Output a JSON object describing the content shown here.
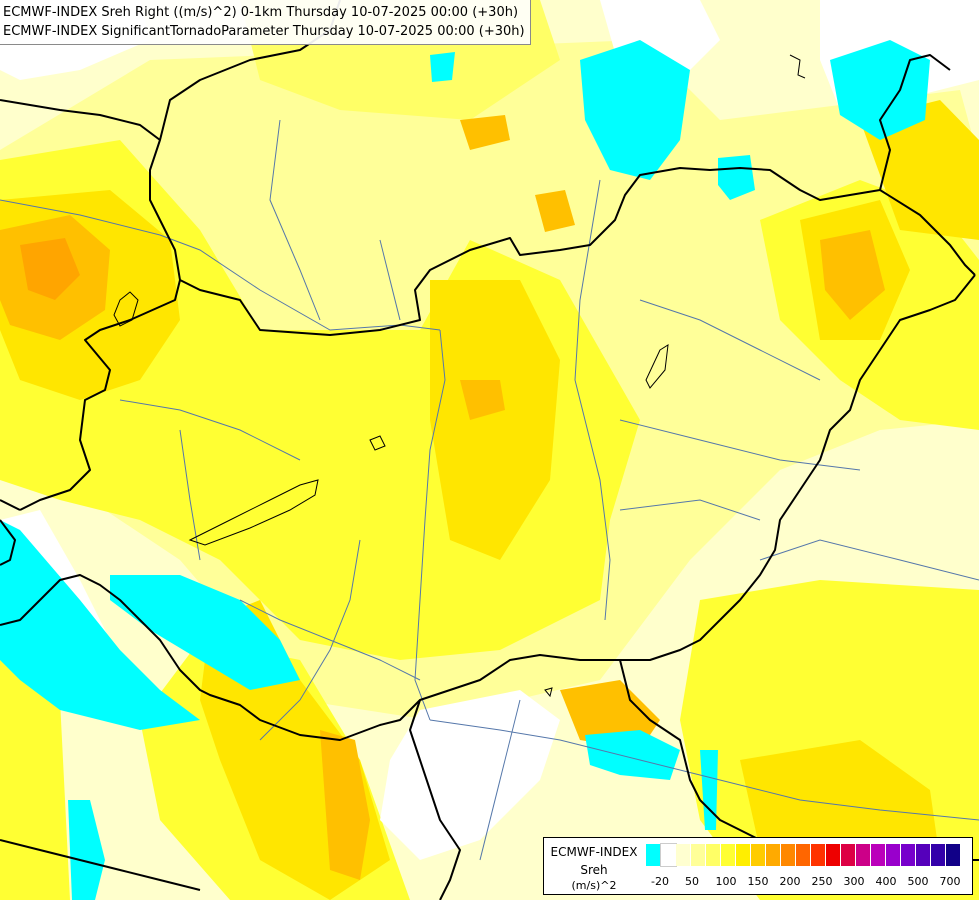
{
  "title": {
    "line1": "ECMWF-INDEX Sreh Right ((m/s)^2) 0-1km Thursday 10-07-2025 00:00 (+30h)",
    "line2": "ECMWF-INDEX SignificantTornadoParameter Thursday 10-07-2025 00:00 (+30h)"
  },
  "legend": {
    "source": "ECMWF-INDEX",
    "parameter": "Sreh",
    "unit": "(m/s)^2",
    "colors": [
      "#00ffff",
      "#ffffff",
      "#ffffd0",
      "#ffff99",
      "#ffff66",
      "#ffff33",
      "#ffee00",
      "#ffcc00",
      "#ffaa00",
      "#ff8800",
      "#ff6600",
      "#ff3300",
      "#ee0000",
      "#dd0044",
      "#cc0088",
      "#bb00bb",
      "#9900cc",
      "#7700cc",
      "#5500bb",
      "#3300aa",
      "#110088"
    ],
    "ticks": [
      "-20",
      "50",
      "100",
      "150",
      "200",
      "250",
      "300",
      "400",
      "500",
      "700"
    ]
  },
  "map": {
    "colors": {
      "cyan": "#00ffff",
      "pale": "#ffffcc",
      "light": "#ffff99",
      "yellow": "#ffff33",
      "gold": "#ffe600",
      "orange": "#ffc000",
      "deep": "#ffa500",
      "border": "#000000",
      "river": "#5577aa"
    }
  }
}
